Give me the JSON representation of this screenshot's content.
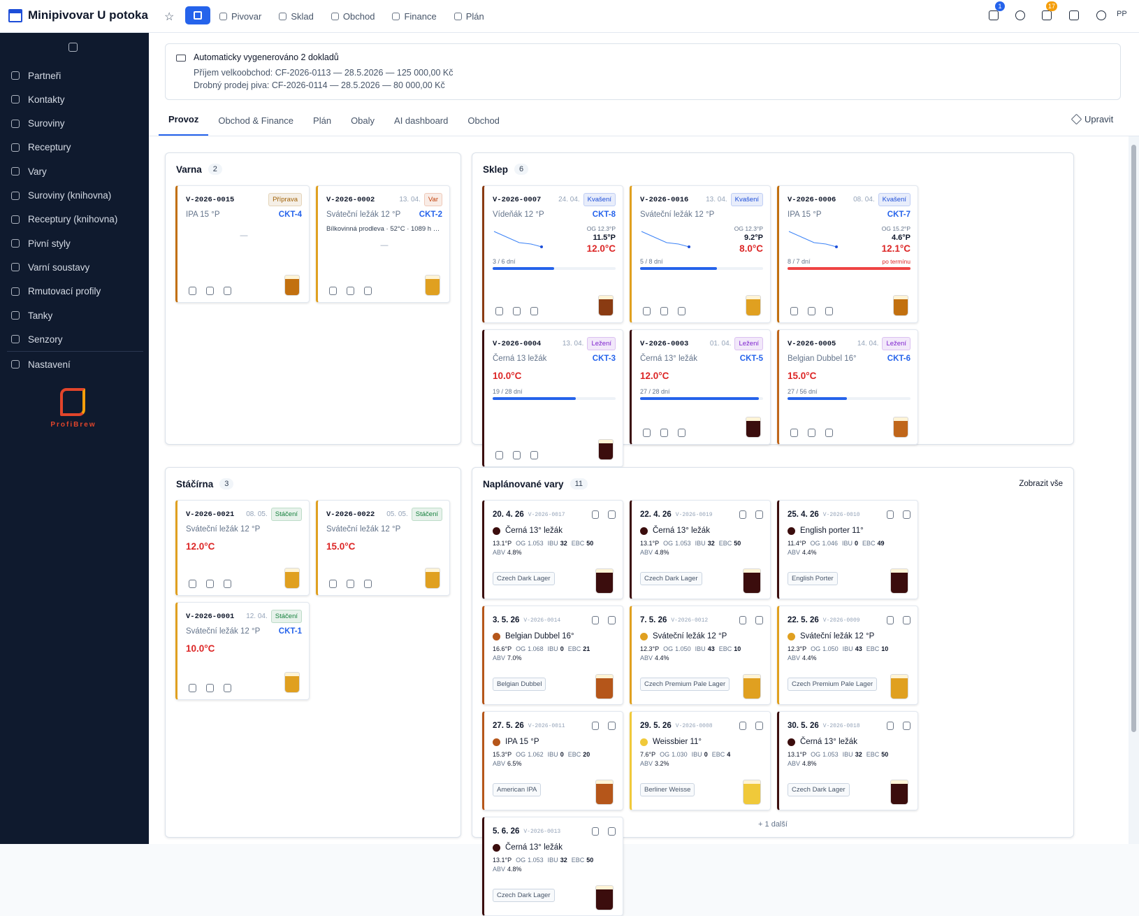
{
  "header": {
    "app_title": "Minipivovar U potoka",
    "nav": [
      "Pivovar",
      "Sklad",
      "Obchod",
      "Finance",
      "Plán"
    ],
    "badges": [
      1,
      17
    ],
    "avatar": "PP"
  },
  "sidebar": {
    "items": [
      "Partneři",
      "Kontakty",
      "Suroviny",
      "Receptury",
      "Vary",
      "Suroviny (knihovna)",
      "Receptury (knihovna)",
      "Pivní styly",
      "Varní soustavy",
      "Rmutovací profily",
      "Tanky",
      "Senzory"
    ],
    "settings": "Nastavení",
    "logo_text": "ProfiBrew"
  },
  "notice": {
    "title": "Automaticky vygenerováno 2 dokladů",
    "lines": [
      "Příjem velkoobchod: CF-2026-0113 — 28.5.2026 — 125 000,00 Kč",
      "Drobný prodej piva: CF-2026-0114 — 28.5.2026 — 80 000,00 Kč"
    ]
  },
  "tabs": {
    "items": [
      "Provoz",
      "Obchod & Finance",
      "Plán",
      "Obaly",
      "AI dashboard",
      "Obchod"
    ],
    "active": 0,
    "edit": "Upravit"
  },
  "varna": {
    "title": "Varna",
    "count": 2,
    "cards": [
      {
        "code": "V-2026-0015",
        "status": "Příprava",
        "status_color": "#a16207",
        "recipe": "IPA 15 °P",
        "tank": "CKT-4",
        "dash": "—",
        "color": "#c2700f"
      },
      {
        "code": "V-2026-0002",
        "date": "13. 04.",
        "status": "Var",
        "status_color": "#c2410c",
        "recipe": "Sváteční ležák 12 °P",
        "tank": "CKT-2",
        "step": "Bílkovinná prodleva · 52°C · 1089 h …",
        "dash": "—",
        "color": "#e0a020"
      }
    ]
  },
  "sklep": {
    "title": "Sklep",
    "count": 6,
    "cards": [
      {
        "code": "V-2026-0007",
        "date": "24. 04.",
        "status": "Kvašení",
        "status_color": "#1d4ed8",
        "recipe": "Vídeňák 12 °P",
        "tank": "CKT-8",
        "og": "OG 12.3°P",
        "gravity": "11.5°P",
        "temp": "12.0°C",
        "progress": "3 / 6 dní",
        "color": "#8a3b12"
      },
      {
        "code": "V-2026-0016",
        "date": "13. 04.",
        "status": "Kvašení",
        "status_color": "#1d4ed8",
        "recipe": "Sváteční ležák 12 °P",
        "og": "OG 12.3°P",
        "gravity": "9.2°P",
        "temp": "8.0°C",
        "progress": "5 / 8 dní",
        "color": "#e0a020"
      },
      {
        "code": "V-2026-0006",
        "date": "08. 04.",
        "status": "Kvašení",
        "status_color": "#1d4ed8",
        "recipe": "IPA 15 °P",
        "tank": "CKT-7",
        "og": "OG 15.2°P",
        "gravity": "4.6°P",
        "temp": "12.1°C",
        "progress": "8 / 7 dní",
        "late": "po termínu",
        "color": "#c2700f"
      },
      {
        "code": "V-2026-0004",
        "date": "13. 04.",
        "status": "Ležení",
        "status_color": "#7e22ce",
        "recipe": "Černá 13 ležák",
        "tank": "CKT-3",
        "temp": "10.0°C",
        "progress": "19 / 28 dní",
        "color": "#3b0d0d"
      },
      {
        "code": "V-2026-0003",
        "date": "01. 04.",
        "status": "Ležení",
        "status_color": "#7e22ce",
        "recipe": "Černá 13° ležák",
        "tank": "CKT-5",
        "temp": "12.0°C",
        "progress": "27 / 28 dní",
        "color": "#3b0d0d"
      },
      {
        "code": "V-2026-0005",
        "date": "14. 04.",
        "status": "Ležení",
        "status_color": "#7e22ce",
        "recipe": "Belgian Dubbel 16°",
        "tank": "CKT-6",
        "temp": "15.0°C",
        "progress": "27 / 56 dní",
        "color": "#c0661a"
      }
    ]
  },
  "stacirna": {
    "title": "Stáčírna",
    "count": 3,
    "cards": [
      {
        "code": "V-2026-0021",
        "date": "08. 05.",
        "status": "Stáčení",
        "status_color": "#15803d",
        "recipe": "Sváteční ležák 12 °P",
        "temp": "12.0°C",
        "color": "#e0a020"
      },
      {
        "code": "V-2026-0022",
        "date": "05. 05.",
        "status": "Stáčení",
        "status_color": "#15803d",
        "recipe": "Sváteční ležák 12 °P",
        "temp": "15.0°C",
        "color": "#e0a020"
      },
      {
        "code": "V-2026-0001",
        "date": "12. 04.",
        "status": "Stáčení",
        "status_color": "#15803d",
        "recipe": "Sváteční ležák 12 °P",
        "tank": "CKT-1",
        "temp": "10.0°C",
        "color": "#e0a020"
      }
    ]
  },
  "planned": {
    "title": "Naplánované vary",
    "count": 11,
    "show_all": "Zobrazit vše",
    "more": "+ 1 další",
    "labels": {
      "og": "OG",
      "ibu": "IBU",
      "ebc": "EBC",
      "abv": "ABV"
    },
    "cards": [
      {
        "date": "20. 4. 26",
        "code": "V-2026-0017",
        "name": "Černá 13° ležák",
        "plato": "13.1°P",
        "og": "1.053",
        "ibu": 32,
        "ebc": 50,
        "abv": "4.8%",
        "style": "Czech Dark Lager",
        "color": "#3b0d0d"
      },
      {
        "date": "22. 4. 26",
        "code": "V-2026-0019",
        "name": "Černá 13° ležák",
        "plato": "13.1°P",
        "og": "1.053",
        "ibu": 32,
        "ebc": 50,
        "abv": "4.8%",
        "style": "Czech Dark Lager",
        "color": "#3b0d0d"
      },
      {
        "date": "25. 4. 26",
        "code": "V-2026-0010",
        "name": "English porter 11°",
        "plato": "11.4°P",
        "og": "1.046",
        "ibu": 0,
        "ebc": 49,
        "abv": "4.4%",
        "style": "English Porter",
        "color": "#3b0d0d"
      },
      {
        "date": "3. 5. 26",
        "code": "V-2026-0014",
        "name": "Belgian Dubbel 16°",
        "plato": "16.6°P",
        "og": "1.068",
        "ibu": 0,
        "ebc": 21,
        "abv": "7.0%",
        "style": "Belgian Dubbel",
        "color": "#b5561a"
      },
      {
        "date": "7. 5. 26",
        "code": "V-2026-0012",
        "name": "Sváteční ležák 12 °P",
        "plato": "12.3°P",
        "og": "1.050",
        "ibu": 43,
        "ebc": 10,
        "abv": "4.4%",
        "style": "Czech Premium Pale Lager",
        "color": "#e0a020"
      },
      {
        "date": "22. 5. 26",
        "code": "V-2026-0009",
        "name": "Sváteční ležák 12 °P",
        "plato": "12.3°P",
        "og": "1.050",
        "ibu": 43,
        "ebc": 10,
        "abv": "4.4%",
        "style": "Czech Premium Pale Lager",
        "color": "#e0a020"
      },
      {
        "date": "27. 5. 26",
        "code": "V-2026-0011",
        "name": "IPA 15 °P",
        "plato": "15.3°P",
        "og": "1.062",
        "ibu": 0,
        "ebc": 20,
        "abv": "6.5%",
        "style": "American IPA",
        "color": "#b5561a"
      },
      {
        "date": "29. 5. 26",
        "code": "V-2026-0008",
        "name": "Weissbier 11°",
        "plato": "7.6°P",
        "og": "1.030",
        "ibu": 0,
        "ebc": 4,
        "abv": "3.2%",
        "style": "Berliner Weisse",
        "color": "#f0c93a"
      },
      {
        "date": "30. 5. 26",
        "code": "V-2026-0018",
        "name": "Černá 13° ležák",
        "plato": "13.1°P",
        "og": "1.053",
        "ibu": 32,
        "ebc": 50,
        "abv": "4.8%",
        "style": "Czech Dark Lager",
        "color": "#3b0d0d"
      },
      {
        "date": "5. 6. 26",
        "code": "V-2026-0013",
        "name": "Černá 13° ležák",
        "plato": "13.1°P",
        "og": "1.053",
        "ibu": 32,
        "ebc": 50,
        "abv": "4.8%",
        "style": "Czech Dark Lager",
        "color": "#3b0d0d"
      }
    ]
  }
}
